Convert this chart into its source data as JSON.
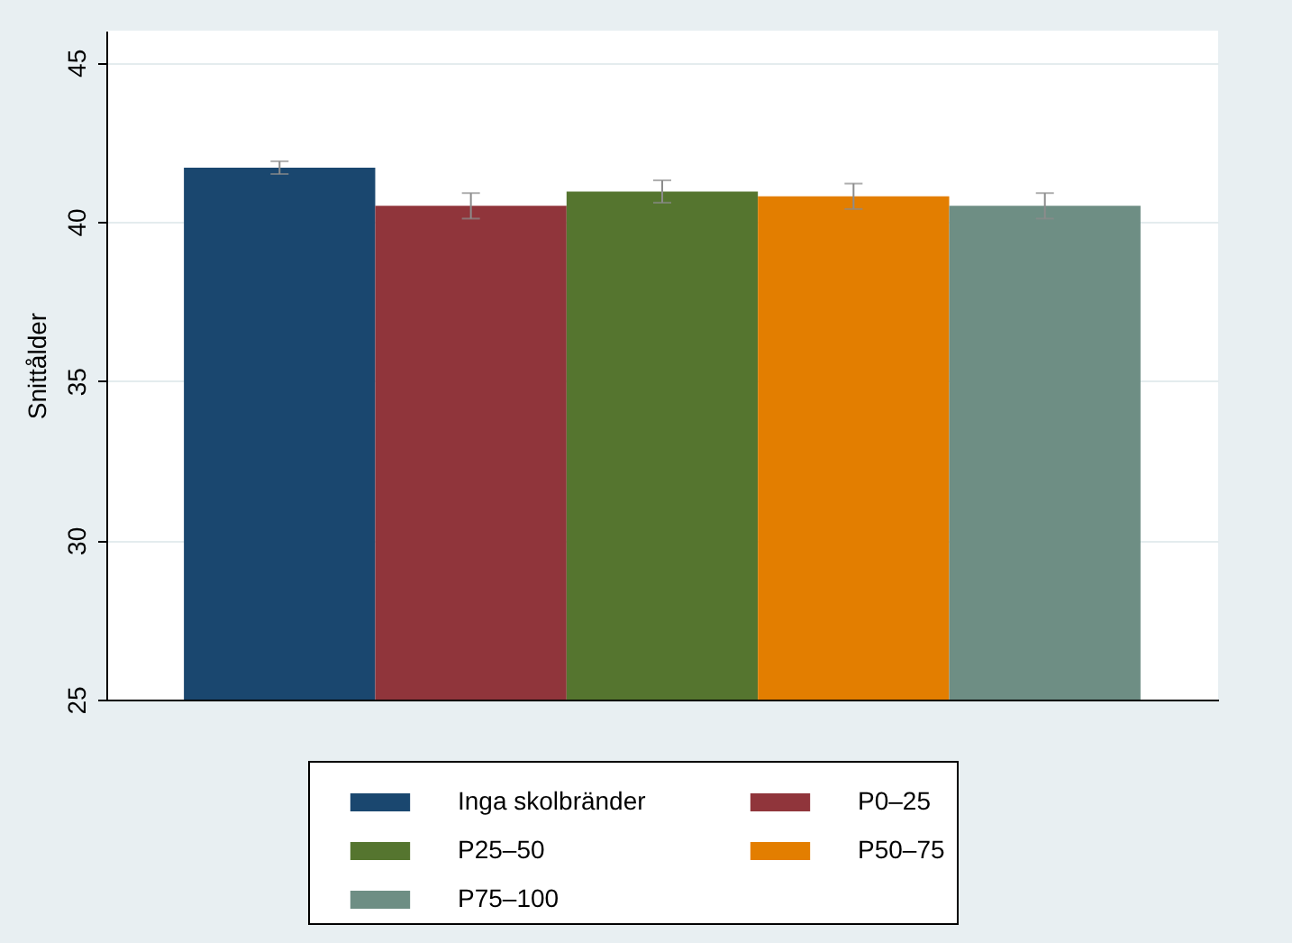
{
  "chart_data": {
    "type": "bar",
    "ylabel": "Snittålder",
    "categories": [
      null
    ],
    "series": [
      {
        "name": "Inga skolbränder",
        "color": "#1a476f",
        "values": [
          41.7
        ],
        "errors": [
          0.2
        ]
      },
      {
        "name": "P0–25",
        "color": "#90353b",
        "values": [
          40.5
        ],
        "errors": [
          0.4
        ]
      },
      {
        "name": "P25–50",
        "color": "#55752f",
        "values": [
          40.95
        ],
        "errors": [
          0.35
        ]
      },
      {
        "name": "P50–75",
        "color": "#e37e00",
        "values": [
          40.8
        ],
        "errors": [
          0.4
        ]
      },
      {
        "name": "P75–100",
        "color": "#6e8e84",
        "values": [
          40.5
        ],
        "errors": [
          0.4
        ]
      }
    ],
    "ylim": [
      25,
      46
    ],
    "yticks": [
      25,
      30,
      35,
      40,
      45
    ],
    "grid": "y",
    "legend": "bottom"
  }
}
